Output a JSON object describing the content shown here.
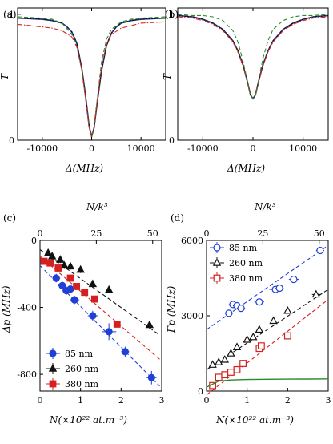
{
  "chart_data": [
    {
      "panel": "(a)",
      "type": "line",
      "xlabel": "Δ(MHz)",
      "ylabel": "T",
      "xlim": [
        -15000,
        15000
      ],
      "ylim": [
        0,
        1.05
      ],
      "xticks": [
        -10000,
        0,
        10000
      ],
      "yticks": [
        0,
        1
      ],
      "series": [
        {
          "style": "solid",
          "color": "#111111",
          "x": [
            -15000,
            -10000,
            -8000,
            -6000,
            -5000,
            -4000,
            -3000,
            -2000,
            -1500,
            -1000,
            -500,
            0,
            500,
            1000,
            1500,
            2000,
            3000,
            4000,
            5000,
            6000,
            8000,
            10000,
            15000
          ],
          "y": [
            0.97,
            0.96,
            0.95,
            0.93,
            0.9,
            0.86,
            0.77,
            0.57,
            0.43,
            0.28,
            0.11,
            0.03,
            0.1,
            0.26,
            0.41,
            0.55,
            0.75,
            0.85,
            0.9,
            0.93,
            0.95,
            0.96,
            0.97
          ]
        },
        {
          "style": "dotted",
          "color": "#1f3fd6",
          "x": [
            -15000,
            -10000,
            -8000,
            -6000,
            -5000,
            -4000,
            -3000,
            -2000,
            -1500,
            -1000,
            -500,
            0,
            500,
            1000,
            1500,
            2000,
            3000,
            4000,
            5000,
            6000,
            8000,
            10000,
            15000
          ],
          "y": [
            0.97,
            0.96,
            0.95,
            0.93,
            0.9,
            0.86,
            0.77,
            0.57,
            0.43,
            0.28,
            0.11,
            0.03,
            0.1,
            0.26,
            0.41,
            0.55,
            0.75,
            0.85,
            0.9,
            0.93,
            0.95,
            0.96,
            0.97
          ]
        },
        {
          "style": "dashed",
          "color": "#2a8a2a",
          "x": [
            -15000,
            -10000,
            -8000,
            -6000,
            -4000,
            -3000,
            -2000,
            -1000,
            -500,
            0,
            500,
            1000,
            2000,
            3000,
            4000,
            6000,
            8000,
            10000,
            15000
          ],
          "y": [
            0.98,
            0.97,
            0.96,
            0.93,
            0.84,
            0.74,
            0.56,
            0.27,
            0.1,
            0.03,
            0.1,
            0.28,
            0.62,
            0.8,
            0.88,
            0.94,
            0.96,
            0.97,
            0.98
          ]
        },
        {
          "style": "dashdot",
          "color": "#d42020",
          "x": [
            -15000,
            -10000,
            -8000,
            -6000,
            -4000,
            -3000,
            -2000,
            -1000,
            -500,
            0,
            500,
            1000,
            2000,
            3000,
            4000,
            6000,
            8000,
            10000,
            15000
          ],
          "y": [
            0.92,
            0.9,
            0.89,
            0.87,
            0.82,
            0.74,
            0.56,
            0.26,
            0.1,
            0.03,
            0.1,
            0.27,
            0.58,
            0.76,
            0.84,
            0.89,
            0.91,
            0.93,
            0.94
          ]
        }
      ]
    },
    {
      "panel": "(b)",
      "type": "line",
      "xlabel": "Δ(MHz)",
      "ylabel": "T",
      "xlim": [
        -15000,
        15000
      ],
      "ylim": [
        0,
        1.05
      ],
      "xticks": [
        -10000,
        0,
        10000
      ],
      "yticks": [
        0,
        1
      ],
      "series": [
        {
          "style": "solid",
          "color": "#111111",
          "x": [
            -15000,
            -12000,
            -10000,
            -8000,
            -6000,
            -4000,
            -3000,
            -2000,
            -1000,
            -500,
            0,
            500,
            1000,
            2000,
            3000,
            4000,
            6000,
            8000,
            10000,
            12000,
            15000
          ],
          "y": [
            0.99,
            0.98,
            0.96,
            0.93,
            0.88,
            0.79,
            0.71,
            0.6,
            0.45,
            0.36,
            0.33,
            0.36,
            0.45,
            0.6,
            0.71,
            0.79,
            0.88,
            0.93,
            0.96,
            0.98,
            0.99
          ]
        },
        {
          "style": "dotted",
          "color": "#1f3fd6",
          "x": [
            -15000,
            -12000,
            -10000,
            -8000,
            -6000,
            -4000,
            -3000,
            -2000,
            -1000,
            -500,
            0,
            500,
            1000,
            2000,
            3000,
            4000,
            6000,
            8000,
            10000,
            12000,
            15000
          ],
          "y": [
            0.99,
            0.98,
            0.96,
            0.93,
            0.88,
            0.79,
            0.71,
            0.6,
            0.45,
            0.36,
            0.33,
            0.36,
            0.45,
            0.6,
            0.71,
            0.79,
            0.88,
            0.93,
            0.96,
            0.98,
            0.99
          ]
        },
        {
          "style": "dashdot",
          "color": "#d42020",
          "x": [
            -15000,
            -12000,
            -10000,
            -8000,
            -6000,
            -4000,
            -3000,
            -2000,
            -1000,
            -500,
            0,
            500,
            1000,
            2000,
            3000,
            4000,
            6000,
            8000,
            10000,
            12000,
            15000
          ],
          "y": [
            0.98,
            0.97,
            0.95,
            0.92,
            0.87,
            0.78,
            0.7,
            0.59,
            0.45,
            0.36,
            0.33,
            0.36,
            0.45,
            0.59,
            0.7,
            0.78,
            0.87,
            0.92,
            0.95,
            0.97,
            0.98
          ]
        },
        {
          "style": "dashed",
          "color": "#2a8a2a",
          "x": [
            -15000,
            -12000,
            -10000,
            -8000,
            -6000,
            -4000,
            -3000,
            -2000,
            -1000,
            -500,
            0,
            500,
            1000,
            2000,
            3000,
            4000,
            6000,
            8000,
            10000,
            12000,
            15000
          ],
          "y": [
            1.0,
            0.99,
            0.99,
            0.98,
            0.95,
            0.87,
            0.78,
            0.63,
            0.45,
            0.36,
            0.33,
            0.36,
            0.46,
            0.65,
            0.79,
            0.88,
            0.95,
            0.98,
            0.99,
            0.99,
            1.0
          ]
        }
      ]
    },
    {
      "panel": "(c)",
      "type": "scatter",
      "xlabel": "N(×10²² at.m⁻³)",
      "x2label": "N/k³",
      "ylabel": "Δp (MHz)",
      "xlim": [
        0,
        3
      ],
      "x2lim": [
        0,
        54
      ],
      "ylim": [
        -900,
        0
      ],
      "xticks": [
        0,
        1,
        2,
        3
      ],
      "x2ticks": [
        0,
        25,
        50
      ],
      "yticks": [
        0,
        -400,
        -800
      ],
      "legend_position": "bottom-left",
      "series": [
        {
          "name": "85 nm",
          "color": "#1f3fd6",
          "marker": "circle",
          "x": [
            0.4,
            0.55,
            0.65,
            0.75,
            0.85,
            1.3,
            1.7,
            2.1,
            2.75
          ],
          "y": [
            -225,
            -270,
            -300,
            -290,
            -355,
            -450,
            -545,
            -665,
            -820
          ],
          "xerr": [
            0.1,
            0.1,
            0.1,
            0.1,
            0.12,
            0.12,
            0.18,
            0.1,
            0.12
          ],
          "yerr": [
            25,
            25,
            25,
            25,
            25,
            30,
            50,
            30,
            40
          ],
          "fit_x": [
            0,
            2.95
          ],
          "fit_y": [
            -150,
            -870
          ]
        },
        {
          "name": "260 nm",
          "color": "#111111",
          "marker": "triangle",
          "x": [
            0.2,
            0.3,
            0.5,
            0.6,
            0.75,
            1.0,
            1.3,
            1.7,
            2.7
          ],
          "y": [
            -75,
            -95,
            -115,
            -150,
            -155,
            -175,
            -260,
            -295,
            -505
          ],
          "xerr": [
            0.05,
            0.05,
            0.05,
            0.05,
            0.05,
            0.05,
            0.05,
            0.05,
            0.1
          ],
          "yerr": [
            20,
            20,
            20,
            20,
            20,
            20,
            20,
            20,
            25
          ],
          "fit_x": [
            0,
            2.95
          ],
          "fit_y": [
            -55,
            -565
          ]
        },
        {
          "name": "380 nm",
          "color": "#d42020",
          "marker": "square",
          "x": [
            0.1,
            0.25,
            0.45,
            0.75,
            0.9,
            1.1,
            1.35,
            1.9
          ],
          "y": [
            -125,
            -135,
            -165,
            -225,
            -275,
            -310,
            -350,
            -500
          ],
          "xerr": [
            0.0,
            0.0,
            0.0,
            0.0,
            0.0,
            0.0,
            0.0,
            0.0
          ],
          "yerr": [
            0,
            0,
            0,
            0,
            0,
            0,
            0,
            0
          ],
          "fit_x": [
            0,
            2.95
          ],
          "fit_y": [
            -95,
            -710
          ]
        }
      ]
    },
    {
      "panel": "(d)",
      "type": "scatter",
      "xlabel": "N(×10²² at.m⁻³)",
      "x2label": "N/k³",
      "ylabel": "Γp (MHz)",
      "xlim": [
        0,
        3
      ],
      "x2lim": [
        0,
        54
      ],
      "ylim": [
        0,
        6000
      ],
      "xticks": [
        0,
        1,
        2,
        3
      ],
      "x2ticks": [
        0,
        25,
        50
      ],
      "yticks": [
        0,
        3000,
        6000
      ],
      "legend_position": "top-left",
      "series": [
        {
          "name": "85 nm",
          "color": "#1f3fd6",
          "marker": "circle",
          "x": [
            0.55,
            0.65,
            0.75,
            0.85,
            1.3,
            1.7,
            1.8,
            2.15,
            2.8
          ],
          "y": [
            3100,
            3450,
            3400,
            3300,
            3550,
            4050,
            4100,
            4450,
            5600
          ],
          "xerr": [
            0.1,
            0.1,
            0.1,
            0.1,
            0.12,
            0.15,
            0.1,
            0.12,
            0.1
          ],
          "yerr": [
            0,
            0,
            0,
            0,
            0,
            0,
            0,
            0,
            0
          ],
          "fit_x": [
            0,
            3.0
          ],
          "fit_y": [
            2450,
            5800
          ]
        },
        {
          "name": "260 nm",
          "color": "#111111",
          "marker": "triangle",
          "x": [
            0.15,
            0.3,
            0.45,
            0.6,
            0.75,
            1.0,
            1.15,
            1.3,
            1.65,
            2.0,
            2.7
          ],
          "y": [
            1050,
            1150,
            1250,
            1500,
            1750,
            2050,
            2150,
            2450,
            2800,
            3200,
            3850
          ],
          "xerr": [
            0.05,
            0.05,
            0.05,
            0.05,
            0.05,
            0.05,
            0.05,
            0.05,
            0.05,
            0.05,
            0.1
          ],
          "yerr": [
            0,
            0,
            0,
            0,
            0,
            0,
            0,
            0,
            0,
            0,
            0
          ],
          "fit_x": [
            0,
            3.0
          ],
          "fit_y": [
            850,
            4050
          ]
        },
        {
          "name": "380 nm",
          "color": "#d42020",
          "marker": "square",
          "x": [
            0.15,
            0.3,
            0.45,
            0.6,
            0.75,
            0.9,
            1.3,
            1.35,
            2.0
          ],
          "y": [
            220,
            550,
            650,
            750,
            850,
            1100,
            1700,
            1800,
            2200
          ],
          "xerr": [
            0,
            0,
            0,
            0,
            0,
            0,
            0,
            0,
            0
          ],
          "yerr": [
            0,
            0,
            0,
            0,
            0,
            0,
            0,
            0,
            0
          ],
          "fit_x": [
            0,
            3.0
          ],
          "fit_y": [
            -150,
            3650
          ]
        },
        {
          "style": "solid",
          "color": "#2a8a2a",
          "x": [
            0,
            0.3,
            0.6,
            1.0,
            1.5,
            2.0,
            2.5,
            3.0
          ],
          "y": [
            150,
            400,
            440,
            460,
            470,
            475,
            480,
            485
          ]
        }
      ]
    }
  ]
}
